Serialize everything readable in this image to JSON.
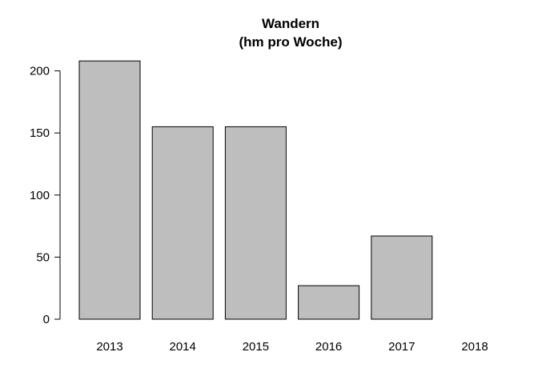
{
  "chart_data": {
    "type": "bar",
    "title_line1": "Wandern",
    "title_line2": "(hm pro Woche)",
    "xlabel": "",
    "ylabel": "",
    "categories": [
      "2013",
      "2014",
      "2015",
      "2016",
      "2017",
      "2018"
    ],
    "values": [
      208,
      155,
      155,
      27,
      67,
      0
    ],
    "ylim": [
      0,
      208
    ],
    "yticks": [
      "0",
      "50",
      "100",
      "150",
      "200"
    ],
    "ytick_values": [
      0,
      50,
      100,
      150,
      200
    ],
    "grid": false,
    "legend": "none",
    "bar_color": "#bebebe",
    "bar_border_color": "#000000"
  }
}
